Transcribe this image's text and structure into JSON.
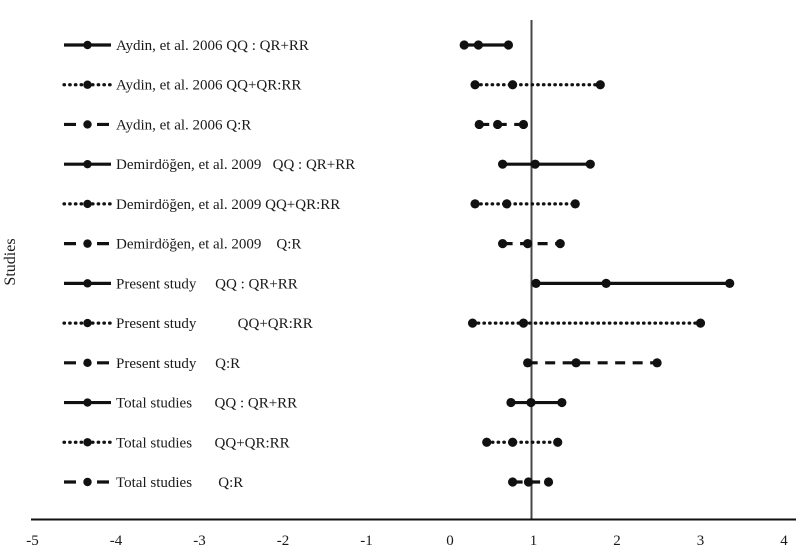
{
  "figure": {
    "background_color": "#ffffff",
    "text_color": "#1a1a1a",
    "marker_color": "#111111",
    "reference_line_color": "#474747"
  },
  "chart_data": {
    "type": "line",
    "variant": "forest-plot",
    "title": "",
    "xlabel": "",
    "ylabel": "Studies",
    "xlim": [
      -5,
      4
    ],
    "x_ticks": [
      -5,
      -4,
      -3,
      -2,
      -1,
      0,
      1,
      2,
      3,
      4
    ],
    "grid": false,
    "legend_position": "inline-left-of-rows",
    "reference_line_x": 1,
    "rows": [
      {
        "label": "Aydin, et al. 2006 QQ : QR+RR",
        "style": "solid",
        "low": 0.17,
        "point": 0.34,
        "high": 0.7
      },
      {
        "label": "Aydin, et al. 2006 QQ+QR:RR",
        "style": "dotted",
        "low": 0.3,
        "point": 0.75,
        "high": 1.8
      },
      {
        "label": "Aydin, et al. 2006 Q:R",
        "style": "dashed",
        "low": 0.35,
        "point": 0.57,
        "high": 0.88
      },
      {
        "label": "Demirdöğen, et al. 2009   QQ : QR+RR",
        "style": "solid",
        "low": 0.63,
        "point": 1.02,
        "high": 1.68
      },
      {
        "label": "Demirdöğen, et al. 2009 QQ+QR:RR",
        "style": "dotted",
        "low": 0.3,
        "point": 0.68,
        "high": 1.5
      },
      {
        "label": "Demirdöğen, et al. 2009    Q:R",
        "style": "dashed",
        "low": 0.63,
        "point": 0.93,
        "high": 1.32
      },
      {
        "label": "Present study     QQ : QR+RR",
        "style": "solid",
        "low": 1.03,
        "point": 1.87,
        "high": 3.35
      },
      {
        "label": "Present study           QQ+QR:RR",
        "style": "dotted",
        "low": 0.27,
        "point": 0.88,
        "high": 3.0
      },
      {
        "label": "Present study     Q:R",
        "style": "dashed",
        "low": 0.93,
        "point": 1.51,
        "high": 2.48
      },
      {
        "label": "Total studies      QQ : QR+RR",
        "style": "solid",
        "low": 0.73,
        "point": 0.97,
        "high": 1.34
      },
      {
        "label": "Total studies      QQ+QR:RR",
        "style": "dotted",
        "low": 0.44,
        "point": 0.75,
        "high": 1.29
      },
      {
        "label": "Total studies       Q:R",
        "style": "dashed",
        "low": 0.75,
        "point": 0.94,
        "high": 1.18
      }
    ]
  }
}
